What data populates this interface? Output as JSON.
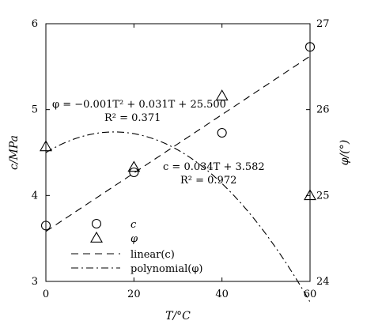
{
  "chart_data": {
    "type": "scatter",
    "title": "",
    "xlabel": "T/°C",
    "ylabel_left": "c/MPa",
    "ylabel_right": "φ/(°)",
    "xlim": [
      0,
      60
    ],
    "ylim_left": [
      3,
      6
    ],
    "ylim_right": [
      24,
      27
    ],
    "x_ticks": [
      0,
      20,
      40,
      60
    ],
    "y_ticks_left": [
      3,
      4,
      5,
      6
    ],
    "y_ticks_right": [
      24,
      25,
      26,
      27
    ],
    "grid": false,
    "legend_position": "bottom-left",
    "series": [
      {
        "name": "c",
        "marker": "circle",
        "axis": "left",
        "x": [
          0,
          20,
          40,
          60
        ],
        "values": [
          3.65,
          4.27,
          4.73,
          5.73
        ]
      },
      {
        "name": "φ",
        "marker": "triangle",
        "axis": "right",
        "x": [
          0,
          20,
          40,
          60
        ],
        "values": [
          25.57,
          25.33,
          26.16,
          25.0
        ]
      }
    ],
    "fits": [
      {
        "name": "linear(c)",
        "series": "c",
        "axis": "left",
        "kind": "linear",
        "slope": 0.034,
        "intercept": 3.582,
        "line_style": "dashed",
        "equation_text": "c = 0.034T + 3.582",
        "r2_text": "R² = 0.972"
      },
      {
        "name": "polynomial(φ)",
        "series": "φ",
        "axis": "right",
        "kind": "quadratic",
        "a": -0.001,
        "b": 0.031,
        "c0": 25.5,
        "line_style": "dash-dot",
        "equation_text": "φ = −0.001T² + 0.031T + 25.500",
        "r2_text": "R² = 0.371"
      }
    ]
  }
}
